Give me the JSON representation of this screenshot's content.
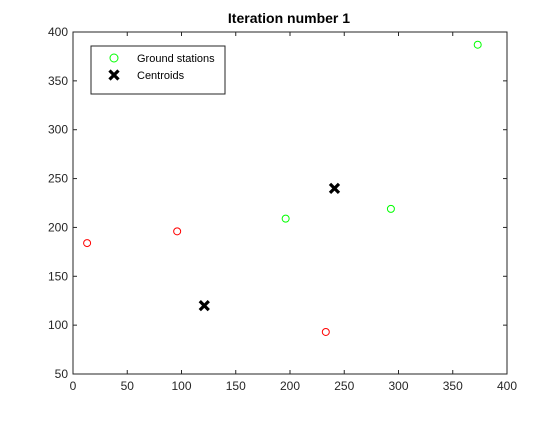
{
  "chart_data": {
    "type": "scatter",
    "title": "Iteration number 1",
    "xlabel": "",
    "ylabel": "",
    "xlim": [
      0,
      400
    ],
    "ylim": [
      50,
      400
    ],
    "xticks": [
      0,
      50,
      100,
      150,
      200,
      250,
      300,
      350,
      400
    ],
    "yticks": [
      50,
      100,
      150,
      200,
      250,
      300,
      350,
      400
    ],
    "grid": false,
    "legend_position": "top-left",
    "series": [
      {
        "name": "Ground stations",
        "marker": "circle",
        "color": "#00ff00",
        "points": [
          {
            "x": 196,
            "y": 209,
            "color": "#00ff00"
          },
          {
            "x": 293,
            "y": 219,
            "color": "#00ff00"
          },
          {
            "x": 373,
            "y": 387,
            "color": "#00ff00"
          },
          {
            "x": 13,
            "y": 184,
            "color": "#ff0000"
          },
          {
            "x": 96,
            "y": 196,
            "color": "#ff0000"
          },
          {
            "x": 233,
            "y": 93,
            "color": "#ff0000"
          }
        ]
      },
      {
        "name": "Centroids",
        "marker": "x",
        "color": "#000000",
        "points": [
          {
            "x": 241,
            "y": 240
          },
          {
            "x": 121,
            "y": 120
          }
        ]
      }
    ]
  }
}
